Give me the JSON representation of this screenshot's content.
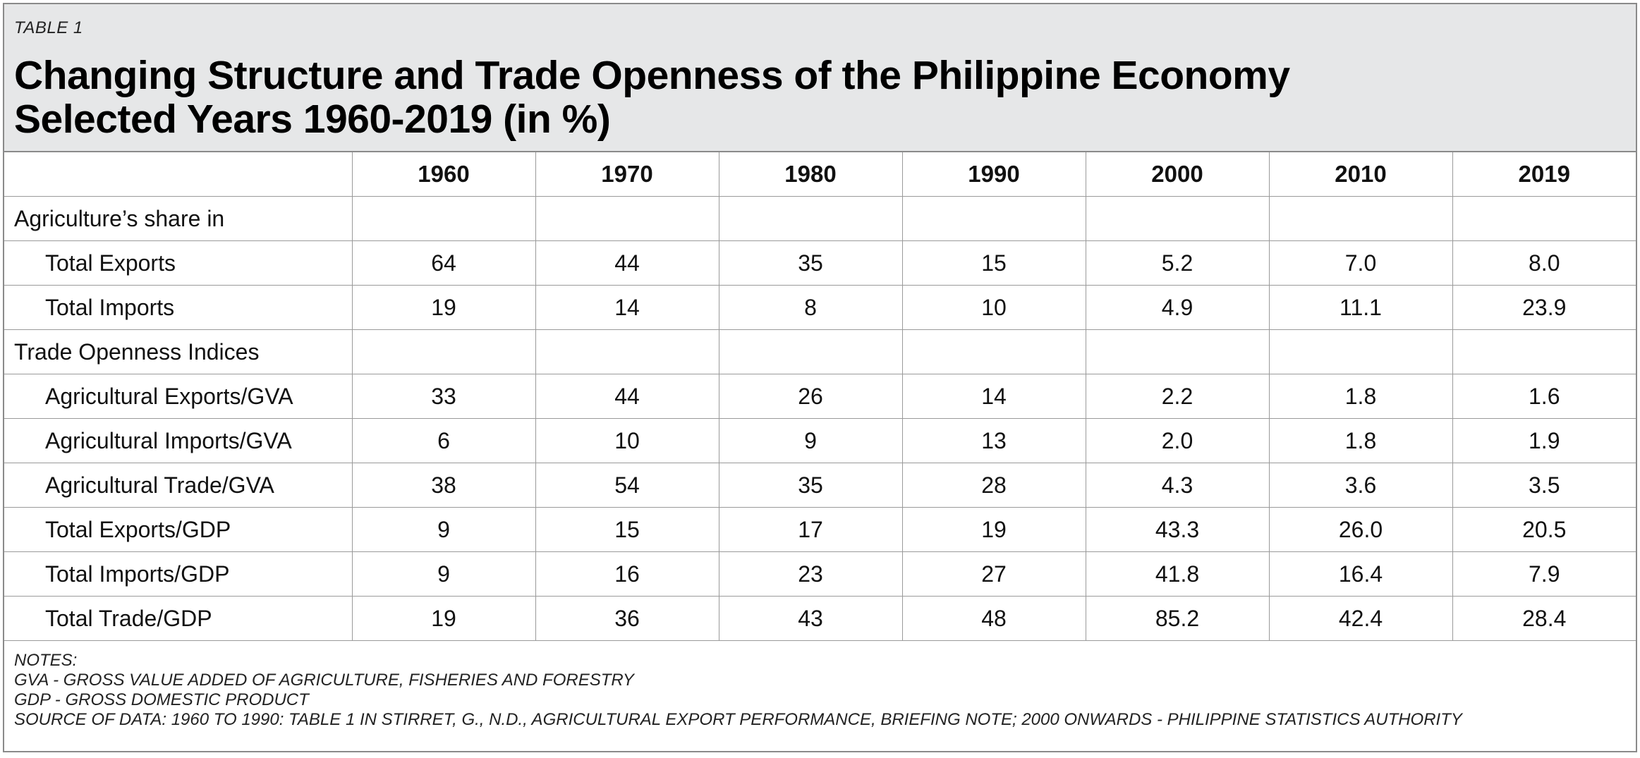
{
  "header": {
    "table_label": "TABLE 1",
    "title_line1": "Changing Structure and Trade Openness of the Philippine Economy",
    "title_line2": "Selected Years 1960-2019 (in %)"
  },
  "columns": [
    "1960",
    "1970",
    "1980",
    "1990",
    "2000",
    "2010",
    "2019"
  ],
  "sections": [
    {
      "heading": "Agriculture’s share in",
      "rows": [
        {
          "label": "Total Exports",
          "values": [
            "64",
            "44",
            "35",
            "15",
            "5.2",
            "7.0",
            "8.0"
          ]
        },
        {
          "label": "Total Imports",
          "values": [
            "19",
            "14",
            "8",
            "10",
            "4.9",
            "11.1",
            "23.9"
          ]
        }
      ]
    },
    {
      "heading": "Trade Openness Indices",
      "rows": [
        {
          "label": "Agricultural Exports/GVA",
          "values": [
            "33",
            "44",
            "26",
            "14",
            "2.2",
            "1.8",
            "1.6"
          ]
        },
        {
          "label": "Agricultural Imports/GVA",
          "values": [
            "6",
            "10",
            "9",
            "13",
            "2.0",
            "1.8",
            "1.9"
          ]
        },
        {
          "label": "Agricultural Trade/GVA",
          "values": [
            "38",
            "54",
            "35",
            "28",
            "4.3",
            "3.6",
            "3.5"
          ]
        },
        {
          "label": "Total Exports/GDP",
          "values": [
            "9",
            "15",
            "17",
            "19",
            "43.3",
            "26.0",
            "20.5"
          ]
        },
        {
          "label": "Total Imports/GDP",
          "values": [
            "9",
            "16",
            "23",
            "27",
            "41.8",
            "16.4",
            "7.9"
          ]
        },
        {
          "label": "Total Trade/GDP",
          "values": [
            "19",
            "36",
            "43",
            "48",
            "85.2",
            "42.4",
            "28.4"
          ]
        }
      ]
    }
  ],
  "notes": [
    "NOTES:",
    "GVA - GROSS VALUE ADDED OF AGRICULTURE, FISHERIES AND FORESTRY",
    "GDP - GROSS DOMESTIC PRODUCT",
    "SOURCE OF DATA: 1960 TO 1990: TABLE 1 IN STIRRET, G., N.D., AGRICULTURAL EXPORT PERFORMANCE, BRIEFING NOTE; 2000 ONWARDS - PHILIPPINE STATISTICS AUTHORITY"
  ]
}
